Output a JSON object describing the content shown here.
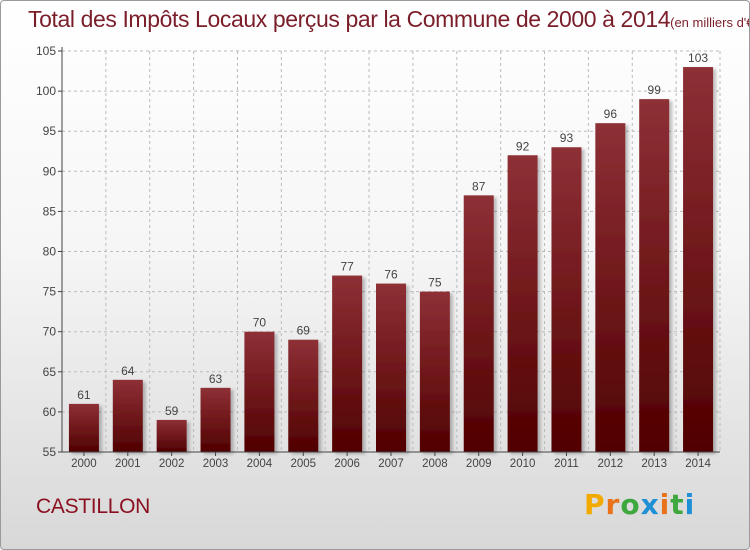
{
  "header": {
    "title": "Total des Impôts Locaux perçus par la Commune de 2000 à 2014",
    "unit": "(en milliers d'€)"
  },
  "footer": {
    "commune": "CASTILLON",
    "logo_letters": [
      "P",
      "r",
      "o",
      "x",
      "i",
      "t",
      "i"
    ],
    "logo_colors": [
      "#f2a900",
      "#e8731a",
      "#3ea83e",
      "#1f8fd6",
      "#e8731a",
      "#3ea83e",
      "#1f8fd6"
    ]
  },
  "colors": {
    "bar_top": "#8e3036",
    "bar_bottom": "#500000",
    "axis": "#444444",
    "grid": "#bbbbbb",
    "text": "#444444"
  },
  "chart_data": {
    "type": "bar",
    "title": "Total des Impôts Locaux perçus par la Commune de 2000 à 2014",
    "xlabel": "",
    "ylabel": "",
    "categories": [
      "2000",
      "2001",
      "2002",
      "2003",
      "2004",
      "2005",
      "2006",
      "2007",
      "2008",
      "2009",
      "2010",
      "2011",
      "2012",
      "2013",
      "2014"
    ],
    "values": [
      61,
      64,
      59,
      63,
      70,
      69,
      77,
      76,
      75,
      87,
      92,
      93,
      96,
      99,
      103
    ],
    "ylim": [
      55,
      105
    ],
    "yticks": [
      55,
      60,
      65,
      70,
      75,
      80,
      85,
      90,
      95,
      100,
      105
    ],
    "grid": true
  }
}
